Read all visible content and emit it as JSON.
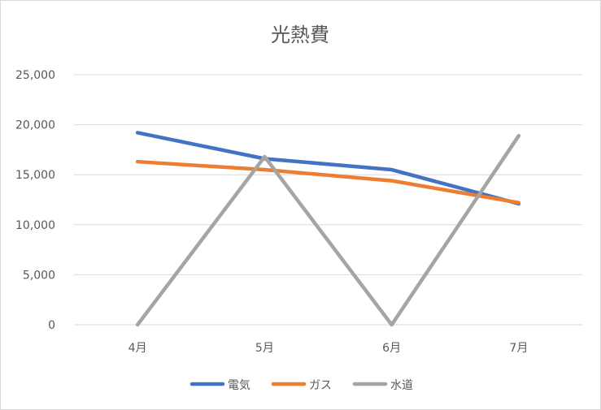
{
  "chart_data": {
    "type": "line",
    "title": "光熱費",
    "categories": [
      "4月",
      "5月",
      "6月",
      "7月"
    ],
    "ylim": [
      0,
      25000
    ],
    "yticks": [
      0,
      5000,
      10000,
      15000,
      20000,
      25000
    ],
    "ytick_labels": [
      "0",
      "5,000",
      "10,000",
      "15,000",
      "20,000",
      "25,000"
    ],
    "grid": true,
    "legend_position": "bottom",
    "series": [
      {
        "name": "電気",
        "color": "#4472C4",
        "values": [
          19200,
          16600,
          15500,
          12100
        ]
      },
      {
        "name": "ガス",
        "color": "#ED7D31",
        "values": [
          16300,
          15500,
          14400,
          12200
        ]
      },
      {
        "name": "水道",
        "color": "#A5A5A5",
        "values": [
          0,
          16800,
          0,
          18900
        ]
      }
    ]
  }
}
